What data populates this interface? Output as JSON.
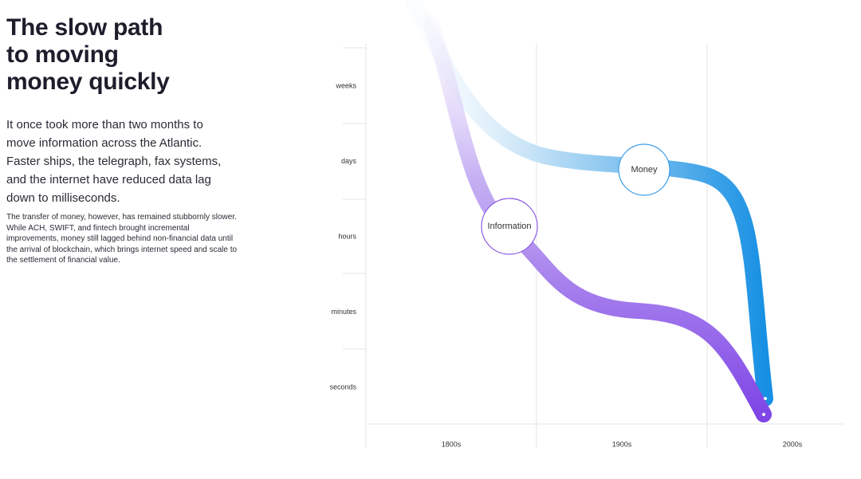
{
  "header": {
    "title": [
      "The slow path",
      "to moving",
      "money quickly"
    ],
    "lead": "It once took more than two months to move information across the Atlantic. Faster ships, the telegraph, fax systems, and the internet have reduced data lag down to milliseconds.",
    "body": "The transfer of money, however, has remained stubbornly slower. While ACH, SWIFT, and fintech brought incremental improvements, money still lagged behind non-financial data until the arrival of blockchain, which brings internet speed and scale to the settlement of financial value."
  },
  "diagram": {
    "y_labels": [
      "weeks",
      "days",
      "hours",
      "minutes",
      "seconds"
    ],
    "x_labels": [
      "1800s",
      "1900s",
      "2000s"
    ],
    "curves": [
      "Money",
      "Information"
    ]
  }
}
